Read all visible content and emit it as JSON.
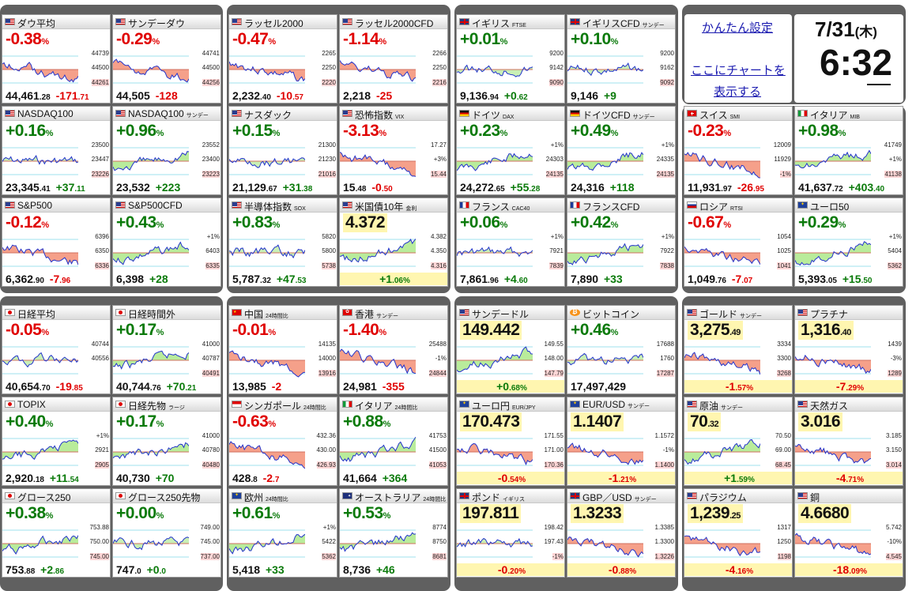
{
  "settings_link": "かんたん設定",
  "chart_link_1": "ここにチャートを",
  "chart_link_2": "表示する",
  "date": "7/31",
  "weekday": "(木)",
  "time": "6:32",
  "colors": {
    "up": "#0a7a0a",
    "down": "#e00000",
    "frame": "#606060",
    "link": "#1a1ab0"
  },
  "tiles": [
    {
      "name": "ダウ平均",
      "sub": "",
      "flag": "us",
      "big": "-0.38",
      "bigunit": "%",
      "dir": "dn",
      "ticks": [
        "44739",
        "44500",
        "44261"
      ],
      "foot_a": "44,461",
      "foot_b": ".28",
      "foot_c": "-171",
      "foot_d": ".71",
      "footdir": "dn",
      "trend": "down"
    },
    {
      "name": "サンデーダウ",
      "sub": "",
      "flag": "us",
      "big": "-0.29",
      "bigunit": "%",
      "dir": "dn",
      "ticks": [
        "44741",
        "44500",
        "44256"
      ],
      "foot_a": "44,505",
      "foot_b": "",
      "foot_c": "-128",
      "foot_d": "",
      "footdir": "dn",
      "trend": "down"
    },
    {
      "name": "ラッセル2000",
      "sub": "",
      "flag": "us",
      "big": "-0.47",
      "bigunit": "%",
      "dir": "dn",
      "ticks": [
        "2265",
        "2250",
        "2220"
      ],
      "foot_a": "2,232",
      "foot_b": ".40",
      "foot_c": "-10",
      "foot_d": ".57",
      "footdir": "dn",
      "trend": "down"
    },
    {
      "name": "ラッセル2000CFD",
      "sub": "",
      "flag": "us",
      "big": "-1.14",
      "bigunit": "%",
      "dir": "dn",
      "ticks": [
        "2266",
        "2250",
        "2216"
      ],
      "foot_a": "2,218",
      "foot_b": "",
      "foot_c": "-25",
      "foot_d": "",
      "footdir": "dn",
      "trend": "down"
    },
    {
      "name": "イギリス",
      "sub": "FTSE",
      "flag": "gb",
      "big": "+0.01",
      "bigunit": "%",
      "dir": "up",
      "ticks": [
        "9200",
        "9142",
        "9090"
      ],
      "foot_a": "9,136",
      "foot_b": ".94",
      "foot_c": "+0",
      "foot_d": ".62",
      "footdir": "up",
      "trend": "flat"
    },
    {
      "name": "イギリスCFD",
      "sub": "サンデー",
      "flag": "gb",
      "big": "+0.10",
      "bigunit": "%",
      "dir": "up",
      "ticks": [
        "9200",
        "9162",
        "9092"
      ],
      "foot_a": "9,146",
      "foot_b": "",
      "foot_c": "+9",
      "foot_d": "",
      "footdir": "up",
      "trend": "flat"
    },
    {
      "name": "NASDAQ100",
      "sub": "",
      "flag": "us",
      "big": "+0.16",
      "bigunit": "%",
      "dir": "up",
      "ticks": [
        "23500",
        "23447",
        "23226"
      ],
      "foot_a": "23,345",
      "foot_b": ".41",
      "foot_c": "+37",
      "foot_d": ".11",
      "footdir": "up",
      "trend": "flat"
    },
    {
      "name": "NASDAQ100",
      "sub": "サンデー",
      "flag": "us",
      "big": "+0.96",
      "bigunit": "%",
      "dir": "up",
      "ticks": [
        "23552",
        "23400",
        "23223"
      ],
      "foot_a": "23,532",
      "foot_b": "",
      "foot_c": "+223",
      "foot_d": "",
      "footdir": "up",
      "trend": "up"
    },
    {
      "name": "ナスダック",
      "sub": "",
      "flag": "us",
      "big": "+0.15",
      "bigunit": "%",
      "dir": "up",
      "ticks": [
        "21300",
        "21230",
        "21016"
      ],
      "foot_a": "21,129",
      "foot_b": ".67",
      "foot_c": "+31",
      "foot_d": ".38",
      "footdir": "up",
      "trend": "flat"
    },
    {
      "name": "恐怖指数",
      "sub": "VIX",
      "flag": "us",
      "big": "-3.13",
      "bigunit": "%",
      "dir": "dn",
      "ticks": [
        "17.27",
        "+3%",
        "15.44"
      ],
      "foot_a": "15",
      "foot_b": ".48",
      "foot_c": "-0",
      "foot_d": ".50",
      "footdir": "dn",
      "trend": "down"
    },
    {
      "name": "ドイツ",
      "sub": "DAX",
      "flag": "de",
      "big": "+0.23",
      "bigunit": "%",
      "dir": "up",
      "ticks": [
        "+1%",
        "24303",
        "24135"
      ],
      "foot_a": "24,272",
      "foot_b": ".65",
      "foot_c": "+55",
      "foot_d": ".28",
      "footdir": "up",
      "trend": "up"
    },
    {
      "name": "ドイツCFD",
      "sub": "サンデー",
      "flag": "de",
      "big": "+0.49",
      "bigunit": "%",
      "dir": "up",
      "ticks": [
        "+1%",
        "24335",
        "24135"
      ],
      "foot_a": "24,316",
      "foot_b": "",
      "foot_c": "+118",
      "foot_d": "",
      "footdir": "up",
      "trend": "up"
    },
    {
      "name": "S&P500",
      "sub": "",
      "flag": "us",
      "big": "-0.12",
      "bigunit": "%",
      "dir": "dn",
      "ticks": [
        "6396",
        "6350",
        "6336"
      ],
      "foot_a": "6,362",
      "foot_b": ".90",
      "foot_c": "-7",
      "foot_d": ".96",
      "footdir": "dn",
      "trend": "down"
    },
    {
      "name": "S&P500CFD",
      "sub": "",
      "flag": "us",
      "big": "+0.43",
      "bigunit": "%",
      "dir": "up",
      "ticks": [
        "+1%",
        "6403",
        "6335"
      ],
      "foot_a": "6,398",
      "foot_b": "",
      "foot_c": "+28",
      "foot_d": "",
      "footdir": "up",
      "trend": "up"
    },
    {
      "name": "半導体指数",
      "sub": "SOX",
      "flag": "us",
      "big": "+0.83",
      "bigunit": "%",
      "dir": "up",
      "ticks": [
        "5820",
        "5800",
        "5738"
      ],
      "foot_a": "5,787",
      "foot_b": ".32",
      "foot_c": "+47",
      "foot_d": ".53",
      "footdir": "up",
      "trend": "flat"
    },
    {
      "name": "米国債10年",
      "sub": "金利",
      "flag": "us",
      "big": "4.372",
      "bigunit": "",
      "dir": "neutral",
      "ticks": [
        "4.382",
        "4.350",
        "4.316"
      ],
      "foot_a": "",
      "foot_b": "",
      "foot_c": "+1",
      "foot_d": ".06%",
      "footdir": "up",
      "trend": "up"
    },
    {
      "name": "フランス",
      "sub": "CAC40",
      "flag": "fr",
      "big": "+0.06",
      "bigunit": "%",
      "dir": "up",
      "ticks": [
        "+1%",
        "7921",
        "7839"
      ],
      "foot_a": "7,861",
      "foot_b": ".96",
      "foot_c": "+4",
      "foot_d": ".60",
      "footdir": "up",
      "trend": "flat"
    },
    {
      "name": "フランスCFD",
      "sub": "",
      "flag": "fr",
      "big": "+0.42",
      "bigunit": "%",
      "dir": "up",
      "ticks": [
        "+1%",
        "7922",
        "7838"
      ],
      "foot_a": "7,890",
      "foot_b": "",
      "foot_c": "+33",
      "foot_d": "",
      "footdir": "up",
      "trend": "up"
    },
    {
      "name": "日経平均",
      "sub": "",
      "flag": "jp",
      "big": "-0.05",
      "bigunit": "%",
      "dir": "dn",
      "ticks": [
        "40744",
        "40556",
        ""
      ],
      "foot_a": "40,654",
      "foot_b": ".70",
      "foot_c": "-19",
      "foot_d": ".85",
      "footdir": "dn",
      "trend": "flat"
    },
    {
      "name": "日経時間外",
      "sub": "",
      "flag": "jp",
      "big": "+0.17",
      "bigunit": "%",
      "dir": "up",
      "ticks": [
        "41000",
        "40787",
        "40491"
      ],
      "foot_a": "40,744",
      "foot_b": ".76",
      "foot_c": "+70",
      "foot_d": ".21",
      "footdir": "up",
      "trend": "up"
    },
    {
      "name": "中国",
      "sub": "24時間比",
      "flag": "cn",
      "big": "-0.01",
      "bigunit": "%",
      "dir": "dn",
      "ticks": [
        "14135",
        "14000",
        "13916"
      ],
      "foot_a": "13,985",
      "foot_b": "",
      "foot_c": "-2",
      "foot_d": "",
      "footdir": "dn",
      "trend": "down"
    },
    {
      "name": "香港",
      "sub": "サンデー",
      "flag": "hk",
      "big": "-1.40",
      "bigunit": "%",
      "dir": "dn",
      "ticks": [
        "25488",
        "-1%",
        "24844"
      ],
      "foot_a": "24,981",
      "foot_b": "",
      "foot_c": "-355",
      "foot_d": "",
      "footdir": "dn",
      "trend": "down"
    },
    {
      "name": "サンデードル",
      "sub": "",
      "flag": "us",
      "big": "149.442",
      "bigunit": "",
      "dir": "neutral",
      "ticks": [
        "149.55",
        "148.00",
        "147.79"
      ],
      "foot_a": "",
      "foot_b": "",
      "foot_c": "+0",
      "foot_d": ".68%",
      "footdir": "up",
      "trend": "up"
    },
    {
      "name": "ビットコイン",
      "sub": "",
      "flag": "btc",
      "big": "+0.46",
      "bigunit": "%",
      "dir": "up",
      "ticks": [
        "17688",
        "1760",
        "17287"
      ],
      "foot_a": "17,497,429",
      "foot_b": "",
      "foot_c": "",
      "foot_d": "",
      "footdir": "up",
      "trend": "flat"
    },
    {
      "name": "TOPIX",
      "sub": "",
      "flag": "jp",
      "big": "+0.40",
      "bigunit": "%",
      "dir": "up",
      "ticks": [
        "+1%",
        "2921",
        "2905"
      ],
      "foot_a": "2,920",
      "foot_b": ".18",
      "foot_c": "+11",
      "foot_d": ".54",
      "footdir": "up",
      "trend": "up"
    },
    {
      "name": "日経先物",
      "sub": "ラージ",
      "flag": "jp",
      "big": "+0.17",
      "bigunit": "%",
      "dir": "up",
      "ticks": [
        "41000",
        "40780",
        "40480"
      ],
      "foot_a": "40,730",
      "foot_b": "",
      "foot_c": "+70",
      "foot_d": "",
      "footdir": "up",
      "trend": "up"
    },
    {
      "name": "シンガポール",
      "sub": "24時間比",
      "flag": "sg",
      "big": "-0.63",
      "bigunit": "%",
      "dir": "dn",
      "ticks": [
        "432.36",
        "430.00",
        "426.93"
      ],
      "foot_a": "428",
      "foot_b": ".8",
      "foot_c": "-2",
      "foot_d": ".7",
      "footdir": "dn",
      "trend": "down"
    },
    {
      "name": "イタリア",
      "sub": "24時間比",
      "flag": "it",
      "big": "+0.88",
      "bigunit": "%",
      "dir": "up",
      "ticks": [
        "41753",
        "41500",
        "41053"
      ],
      "foot_a": "41,664",
      "foot_b": "",
      "foot_c": "+364",
      "foot_d": "",
      "footdir": "up",
      "trend": "up"
    },
    {
      "name": "ユーロ円",
      "sub": "EUR/JPY",
      "flag": "eu",
      "big": "170.473",
      "bigunit": "",
      "dir": "neutral",
      "ticks": [
        "171.55",
        "171.00",
        "170.36"
      ],
      "foot_a": "",
      "foot_b": "",
      "foot_c": "-0",
      "foot_d": ".54%",
      "footdir": "dn",
      "trend": "down"
    },
    {
      "name": "EUR/USD",
      "sub": "サンデー",
      "flag": "eu",
      "big": "1.1407",
      "bigunit": "",
      "dir": "neutral",
      "ticks": [
        "1.1572",
        "-1%",
        "1.1400"
      ],
      "foot_a": "",
      "foot_b": "",
      "foot_c": "-1",
      "foot_d": ".21%",
      "footdir": "dn",
      "trend": "down"
    },
    {
      "name": "グロース250",
      "sub": "",
      "flag": "jp",
      "big": "+0.38",
      "bigunit": "%",
      "dir": "up",
      "ticks": [
        "753.88",
        "750.00",
        "745.00"
      ],
      "foot_a": "753",
      "foot_b": ".88",
      "foot_c": "+2",
      "foot_d": ".86",
      "footdir": "up",
      "trend": "up"
    },
    {
      "name": "グロース250先物",
      "sub": "",
      "flag": "jp",
      "big": "+0.00",
      "bigunit": "%",
      "dir": "up",
      "ticks": [
        "749.00",
        "745.00",
        "737.00"
      ],
      "foot_a": "747",
      "foot_b": ".0",
      "foot_c": "+0",
      "foot_d": ".0",
      "footdir": "up",
      "trend": "flat"
    },
    {
      "name": "欧州",
      "sub": "24時間比",
      "flag": "eu",
      "big": "+0.61",
      "bigunit": "%",
      "dir": "up",
      "ticks": [
        "+1%",
        "5422",
        "5362"
      ],
      "foot_a": "5,418",
      "foot_b": "",
      "foot_c": "+33",
      "foot_d": "",
      "footdir": "up",
      "trend": "up"
    },
    {
      "name": "オーストラリア",
      "sub": "24時間比",
      "flag": "au",
      "big": "+0.53",
      "bigunit": "%",
      "dir": "up",
      "ticks": [
        "8774",
        "8750",
        "8681"
      ],
      "foot_a": "8,736",
      "foot_b": "",
      "foot_c": "+46",
      "foot_d": "",
      "footdir": "up",
      "trend": "up"
    },
    {
      "name": "ポンド",
      "sub": "イギリス",
      "flag": "gb",
      "big": "197.811",
      "bigunit": "",
      "dir": "neutral",
      "ticks": [
        "198.42",
        "197.43",
        "-1%"
      ],
      "foot_a": "",
      "foot_b": "",
      "foot_c": "-0",
      "foot_d": ".20%",
      "footdir": "dn",
      "trend": "flat"
    },
    {
      "name": "GBP／USD",
      "sub": "サンデー",
      "flag": "gb",
      "big": "1.3233",
      "bigunit": "",
      "dir": "neutral",
      "ticks": [
        "1.3385",
        "1.3300",
        "1.3226"
      ],
      "foot_a": "",
      "foot_b": "",
      "foot_c": "-0",
      "foot_d": ".88%",
      "footdir": "dn",
      "trend": "down"
    },
    {
      "name": "ユーロ50",
      "sub": "",
      "flag": "eu",
      "big": "+0.29",
      "bigunit": "%",
      "dir": "up",
      "ticks": [
        "+1%",
        "5404",
        "5362"
      ],
      "foot_a": "5,393",
      "foot_b": ".05",
      "foot_c": "+15",
      "foot_d": ".50",
      "footdir": "up",
      "trend": "up"
    },
    {
      "name": "ロシア",
      "sub": "RTSI",
      "flag": "ru",
      "big": "-0.67",
      "bigunit": "%",
      "dir": "dn",
      "ticks": [
        "1054",
        "1025",
        "1041"
      ],
      "foot_a": "1,049",
      "foot_b": ".76",
      "foot_c": "-7",
      "foot_d": ".07",
      "footdir": "dn",
      "trend": "down"
    },
    {
      "name": "スイス",
      "sub": "SMI",
      "flag": "ch",
      "big": "-0.23",
      "bigunit": "%",
      "dir": "dn",
      "ticks": [
        "12009",
        "11929",
        "-1%"
      ],
      "foot_a": "11,931",
      "foot_b": ".97",
      "foot_c": "-26",
      "foot_d": ".95",
      "footdir": "dn",
      "trend": "down"
    },
    {
      "name": "イタリア",
      "sub": "MIB",
      "flag": "it",
      "big": "+0.98",
      "bigunit": "%",
      "dir": "up",
      "ticks": [
        "41749",
        "+1%",
        "41138"
      ],
      "foot_a": "41,637",
      "foot_b": ".72",
      "foot_c": "+403",
      "foot_d": ".40",
      "footdir": "up",
      "trend": "up"
    },
    {
      "name": "ゴールド",
      "sub": "サンデー",
      "flag": "us",
      "big": "3,275",
      "bigunit": ".49",
      "dir": "neutral",
      "ticks": [
        "3334",
        "3300",
        "3268"
      ],
      "foot_a": "",
      "foot_b": "",
      "foot_c": "-1",
      "foot_d": ".57%",
      "footdir": "dn",
      "trend": "down"
    },
    {
      "name": "プラチナ",
      "sub": "",
      "flag": "us",
      "big": "1,316",
      "bigunit": ".40",
      "dir": "neutral",
      "ticks": [
        "1439",
        "-3%",
        "1289"
      ],
      "foot_a": "",
      "foot_b": "",
      "foot_c": "-7",
      "foot_d": ".29%",
      "footdir": "dn",
      "trend": "down"
    },
    {
      "name": "原油",
      "sub": "サンデー",
      "flag": "us",
      "big": "70",
      "bigunit": ".32",
      "dir": "neutral",
      "ticks": [
        "70.50",
        "69.00",
        "68.45"
      ],
      "foot_a": "",
      "foot_b": "",
      "foot_c": "+1",
      "foot_d": ".59%",
      "footdir": "up",
      "trend": "up"
    },
    {
      "name": "天然ガス",
      "sub": "",
      "flag": "us",
      "big": "3.016",
      "bigunit": "",
      "dir": "neutral",
      "ticks": [
        "3.185",
        "3.150",
        "3.014"
      ],
      "foot_a": "",
      "foot_b": "",
      "foot_c": "-4",
      "foot_d": ".71%",
      "footdir": "dn",
      "trend": "down"
    },
    {
      "name": "パラジウム",
      "sub": "",
      "flag": "us",
      "big": "1,239",
      "bigunit": ".25",
      "dir": "neutral",
      "ticks": [
        "1317",
        "1250",
        "1198"
      ],
      "foot_a": "",
      "foot_b": "",
      "foot_c": "-4",
      "foot_d": ".16%",
      "footdir": "dn",
      "trend": "down"
    },
    {
      "name": "銅",
      "sub": "",
      "flag": "us",
      "big": "4.6680",
      "bigunit": "",
      "dir": "neutral",
      "ticks": [
        "5.742",
        "-10%",
        "4.545"
      ],
      "foot_a": "",
      "foot_b": "",
      "foot_c": "-18",
      "foot_d": ".09%",
      "footdir": "dn",
      "trend": "down"
    }
  ]
}
